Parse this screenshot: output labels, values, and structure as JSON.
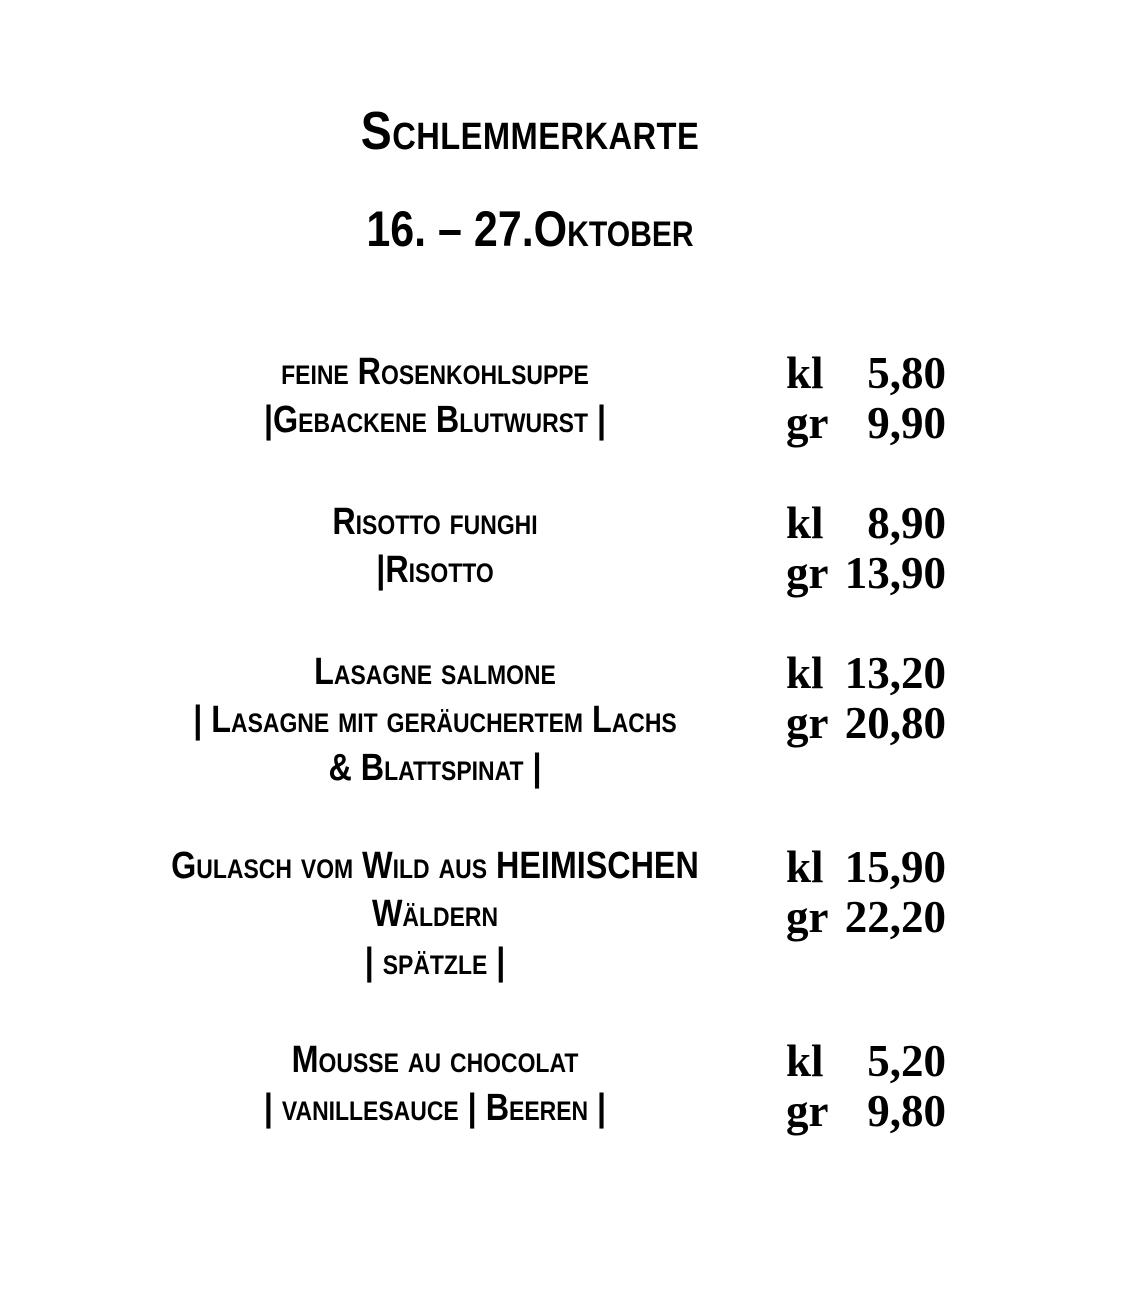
{
  "theme": {
    "paper_color": "#ffffff",
    "ink_color": "#000000"
  },
  "header": {
    "title": "Schlemmerkarte",
    "date_range": "16. – 27.Oktober"
  },
  "menu": {
    "size_labels": [
      "kl",
      "gr"
    ],
    "items": [
      {
        "name_lines": [
          "feine Rosenkohlsuppe",
          "|Gebackene Blutwurst |"
        ],
        "prices": [
          {
            "size": "kl",
            "amount": "5,80"
          },
          {
            "size": "gr",
            "amount": "9,90"
          }
        ]
      },
      {
        "name_lines": [
          "Risotto funghi",
          "|Risotto"
        ],
        "prices": [
          {
            "size": "kl",
            "amount": "8,90"
          },
          {
            "size": "gr",
            "amount": "13,90"
          }
        ]
      },
      {
        "name_lines": [
          "Lasagne salmone",
          "| Lasagne mit geräuchertem Lachs",
          "& Blattspinat |"
        ],
        "prices": [
          {
            "size": "kl",
            "amount": "13,20"
          },
          {
            "size": "gr",
            "amount": "20,80"
          }
        ]
      },
      {
        "name_lines": [
          "Gulasch vom Wild aus HEIMISCHEN",
          "Wäldern",
          "| spätzle |"
        ],
        "prices": [
          {
            "size": "kl",
            "amount": "15,90"
          },
          {
            "size": "gr",
            "amount": "22,20"
          }
        ]
      },
      {
        "name_lines": [
          "Mousse au chocolat",
          "| vanillesauce | Beeren |"
        ],
        "prices": [
          {
            "size": "kl",
            "amount": "5,20"
          },
          {
            "size": "gr",
            "amount": "9,80"
          }
        ]
      }
    ]
  }
}
